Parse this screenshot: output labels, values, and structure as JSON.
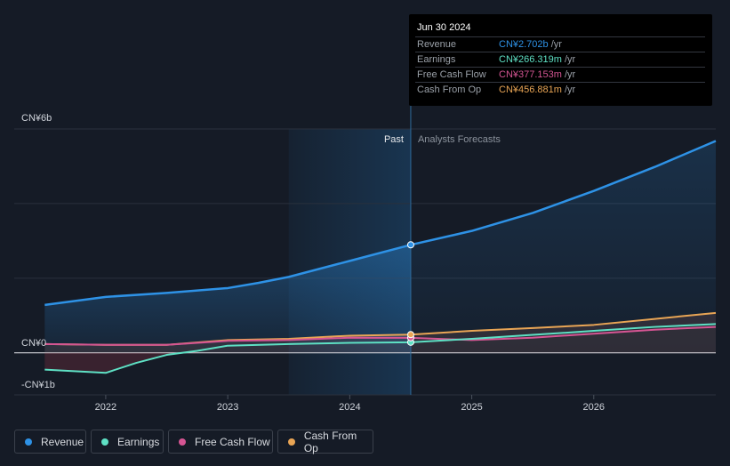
{
  "chart_data": {
    "type": "line",
    "y_axis": {
      "top_label": "CN¥6b",
      "zero_label": "CN¥0",
      "bottom_label": "-CN¥1b",
      "ylim": [
        -1.05,
        5.6
      ]
    },
    "x_axis": {
      "ticks": [
        "2022",
        "2023",
        "2024",
        "2025",
        "2026"
      ],
      "xlim": [
        2021.25,
        2027.0
      ]
    },
    "regions": {
      "past_label": "Past",
      "forecast_label": "Analysts Forecasts",
      "divider_x": 2024.5,
      "highlight_start_x": 2023.5
    },
    "series": [
      {
        "name": "Revenue",
        "color": "#2e92e6",
        "points": [
          [
            2021.5,
            1.2
          ],
          [
            2022.0,
            1.4
          ],
          [
            2022.5,
            1.5
          ],
          [
            2023.0,
            1.62
          ],
          [
            2023.25,
            1.75
          ],
          [
            2023.5,
            1.9
          ],
          [
            2024.0,
            2.3
          ],
          [
            2024.5,
            2.702
          ],
          [
            2025.0,
            3.05
          ],
          [
            2025.5,
            3.5
          ],
          [
            2026.0,
            4.05
          ],
          [
            2026.5,
            4.65
          ],
          [
            2027.0,
            5.3
          ]
        ]
      },
      {
        "name": "Earnings",
        "color": "#5ee0c4",
        "points": [
          [
            2021.5,
            -0.42
          ],
          [
            2022.0,
            -0.5
          ],
          [
            2022.25,
            -0.25
          ],
          [
            2022.5,
            -0.05
          ],
          [
            2022.75,
            0.05
          ],
          [
            2023.0,
            0.18
          ],
          [
            2023.5,
            0.22
          ],
          [
            2024.0,
            0.25
          ],
          [
            2024.5,
            0.266
          ],
          [
            2025.0,
            0.35
          ],
          [
            2025.5,
            0.45
          ],
          [
            2026.0,
            0.55
          ],
          [
            2026.5,
            0.65
          ],
          [
            2027.0,
            0.72
          ]
        ]
      },
      {
        "name": "Free Cash Flow",
        "color": "#d55593",
        "points": [
          [
            2021.5,
            0.22
          ],
          [
            2022.0,
            0.2
          ],
          [
            2022.5,
            0.2
          ],
          [
            2023.0,
            0.3
          ],
          [
            2023.5,
            0.32
          ],
          [
            2024.0,
            0.38
          ],
          [
            2024.5,
            0.377
          ],
          [
            2025.0,
            0.32
          ],
          [
            2025.5,
            0.38
          ],
          [
            2026.0,
            0.48
          ],
          [
            2026.5,
            0.58
          ],
          [
            2027.0,
            0.65
          ]
        ]
      },
      {
        "name": "Cash From Op",
        "color": "#e9a555",
        "points": [
          [
            2021.5,
            0.22
          ],
          [
            2022.0,
            0.2
          ],
          [
            2022.5,
            0.2
          ],
          [
            2023.0,
            0.32
          ],
          [
            2023.5,
            0.35
          ],
          [
            2024.0,
            0.43
          ],
          [
            2024.5,
            0.457
          ],
          [
            2025.0,
            0.55
          ],
          [
            2025.5,
            0.62
          ],
          [
            2026.0,
            0.7
          ],
          [
            2026.5,
            0.85
          ],
          [
            2027.0,
            1.0
          ]
        ]
      }
    ]
  },
  "tooltip": {
    "date": "Jun 30 2024",
    "rows": [
      {
        "label": "Revenue",
        "value": "CN¥2.702b",
        "unit": "/yr",
        "color": "#2e92e6"
      },
      {
        "label": "Earnings",
        "value": "CN¥266.319m",
        "unit": "/yr",
        "color": "#5ee0c4"
      },
      {
        "label": "Free Cash Flow",
        "value": "CN¥377.153m",
        "unit": "/yr",
        "color": "#d55593"
      },
      {
        "label": "Cash From Op",
        "value": "CN¥456.881m",
        "unit": "/yr",
        "color": "#e9a555"
      }
    ]
  },
  "legend": [
    {
      "label": "Revenue",
      "color": "#2e92e6"
    },
    {
      "label": "Earnings",
      "color": "#5ee0c4"
    },
    {
      "label": "Free Cash Flow",
      "color": "#d55593"
    },
    {
      "label": "Cash From Op",
      "color": "#e9a555"
    }
  ]
}
